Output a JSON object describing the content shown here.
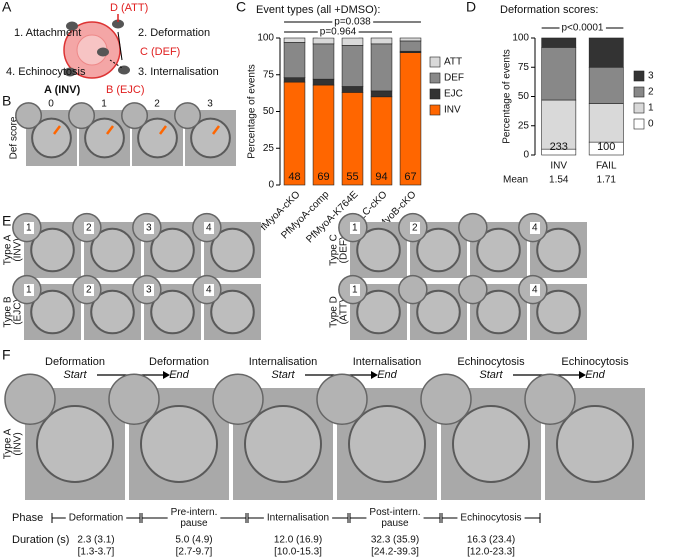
{
  "panel_labels": [
    "A",
    "B",
    "C",
    "D",
    "E",
    "F"
  ],
  "diagram": {
    "attachment": "1. Attachment",
    "deformation": "2. Deformation",
    "internalisation": "3. Internalisation",
    "echinocytosis": "4. Echinocytosis",
    "att": "D (ATT)",
    "def": "C (DEF)",
    "ejc": "B (EJC)",
    "inv": "A (INV)"
  },
  "def_score": {
    "label": "Def score",
    "scores": [
      "0",
      "1",
      "2",
      "3"
    ]
  },
  "chart_data": [
    {
      "type": "bar",
      "stacked": true,
      "title": "Event types (all +DMSO):",
      "ylabel": "Percentage of events",
      "categories": [
        "PfMyoA-cKO",
        "PfMyoA-comp",
        "PfMyoA-K764E",
        "PfELC-cKO",
        "PfMyoB-cKO"
      ],
      "series": [
        {
          "name": "INV",
          "color": "#ff6600",
          "values": [
            70,
            68,
            63,
            60,
            90
          ]
        },
        {
          "name": "EJC",
          "color": "#333333",
          "values": [
            3,
            4,
            4,
            4,
            1
          ]
        },
        {
          "name": "DEF",
          "color": "#888888",
          "values": [
            24,
            24,
            28,
            32,
            7
          ]
        },
        {
          "name": "ATT",
          "color": "#d9d9d9",
          "values": [
            3,
            4,
            5,
            4,
            2
          ]
        }
      ],
      "n_labels": [
        48,
        69,
        55,
        94,
        67
      ],
      "ylim": [
        0,
        100
      ],
      "yticks": [
        0,
        25,
        50,
        75,
        100
      ],
      "annotations": [
        {
          "text": "p=0.038",
          "from": 0,
          "to": 4
        },
        {
          "text": "p=0.964",
          "from": 0,
          "to": 3
        }
      ]
    },
    {
      "type": "bar",
      "stacked": true,
      "title": "Deformation scores:",
      "ylabel": "Percentage of events",
      "categories": [
        "INV",
        "FAIL"
      ],
      "series": [
        {
          "name": "0",
          "color": "#ffffff",
          "values": [
            5,
            11
          ]
        },
        {
          "name": "1",
          "color": "#d9d9d9",
          "values": [
            42,
            33
          ]
        },
        {
          "name": "2",
          "color": "#888888",
          "values": [
            45,
            31
          ]
        },
        {
          "name": "3",
          "color": "#333333",
          "values": [
            8,
            25
          ]
        }
      ],
      "n_labels": [
        233,
        100
      ],
      "mean_label": "Mean",
      "means": [
        1.54,
        1.71
      ],
      "ylim": [
        0,
        100
      ],
      "yticks": [
        0,
        25,
        50,
        75,
        100
      ],
      "annotations": [
        {
          "text": "p<0.0001",
          "from": 0,
          "to": 1
        }
      ]
    }
  ],
  "type_rows": [
    {
      "type": "Type A",
      "event": "(INV)",
      "frames": [
        "1",
        "2",
        "3",
        "4"
      ]
    },
    {
      "type": "Type B",
      "event": "(EJC)",
      "frames": [
        "1",
        "2",
        "3",
        "4"
      ]
    },
    {
      "type": "Type C",
      "event": "(DEF)",
      "frames": [
        "1",
        "2",
        null,
        "4"
      ]
    },
    {
      "type": "Type D",
      "event": "(ATT)",
      "frames": [
        "1",
        null,
        null,
        "4"
      ]
    }
  ],
  "timeline": {
    "headers": [
      {
        "name": "Deformation",
        "when": "Start"
      },
      {
        "name": "Deformation",
        "when": "End"
      },
      {
        "name": "Internalisation",
        "when": "Start"
      },
      {
        "name": "Internalisation",
        "when": "End"
      },
      {
        "name": "Echinocytosis",
        "when": "Start"
      },
      {
        "name": "Echinocytosis",
        "when": "End"
      }
    ],
    "row_type": "Type A",
    "row_event": "(INV)",
    "phase_label": "Phase",
    "phases": [
      [
        "Deformation"
      ],
      [
        "Pre-intern.",
        "pause"
      ],
      [
        "Internalisation"
      ],
      [
        "Post-intern.",
        "pause"
      ],
      [
        "Echinocytosis"
      ]
    ],
    "duration_label": "Duration (s)",
    "durations": [
      {
        "median": "2.3 (3.1)",
        "range": "[1.3-3.7]"
      },
      {
        "median": "5.0 (4.9)",
        "range": "[2.7-9.7]"
      },
      {
        "median": "12.0 (16.9)",
        "range": "[10.0-15.3]"
      },
      {
        "median": "32.3 (35.9)",
        "range": "[24.2-39.3]"
      },
      {
        "median": "16.3 (23.4)",
        "range": "[12.0-23.3]"
      }
    ]
  }
}
